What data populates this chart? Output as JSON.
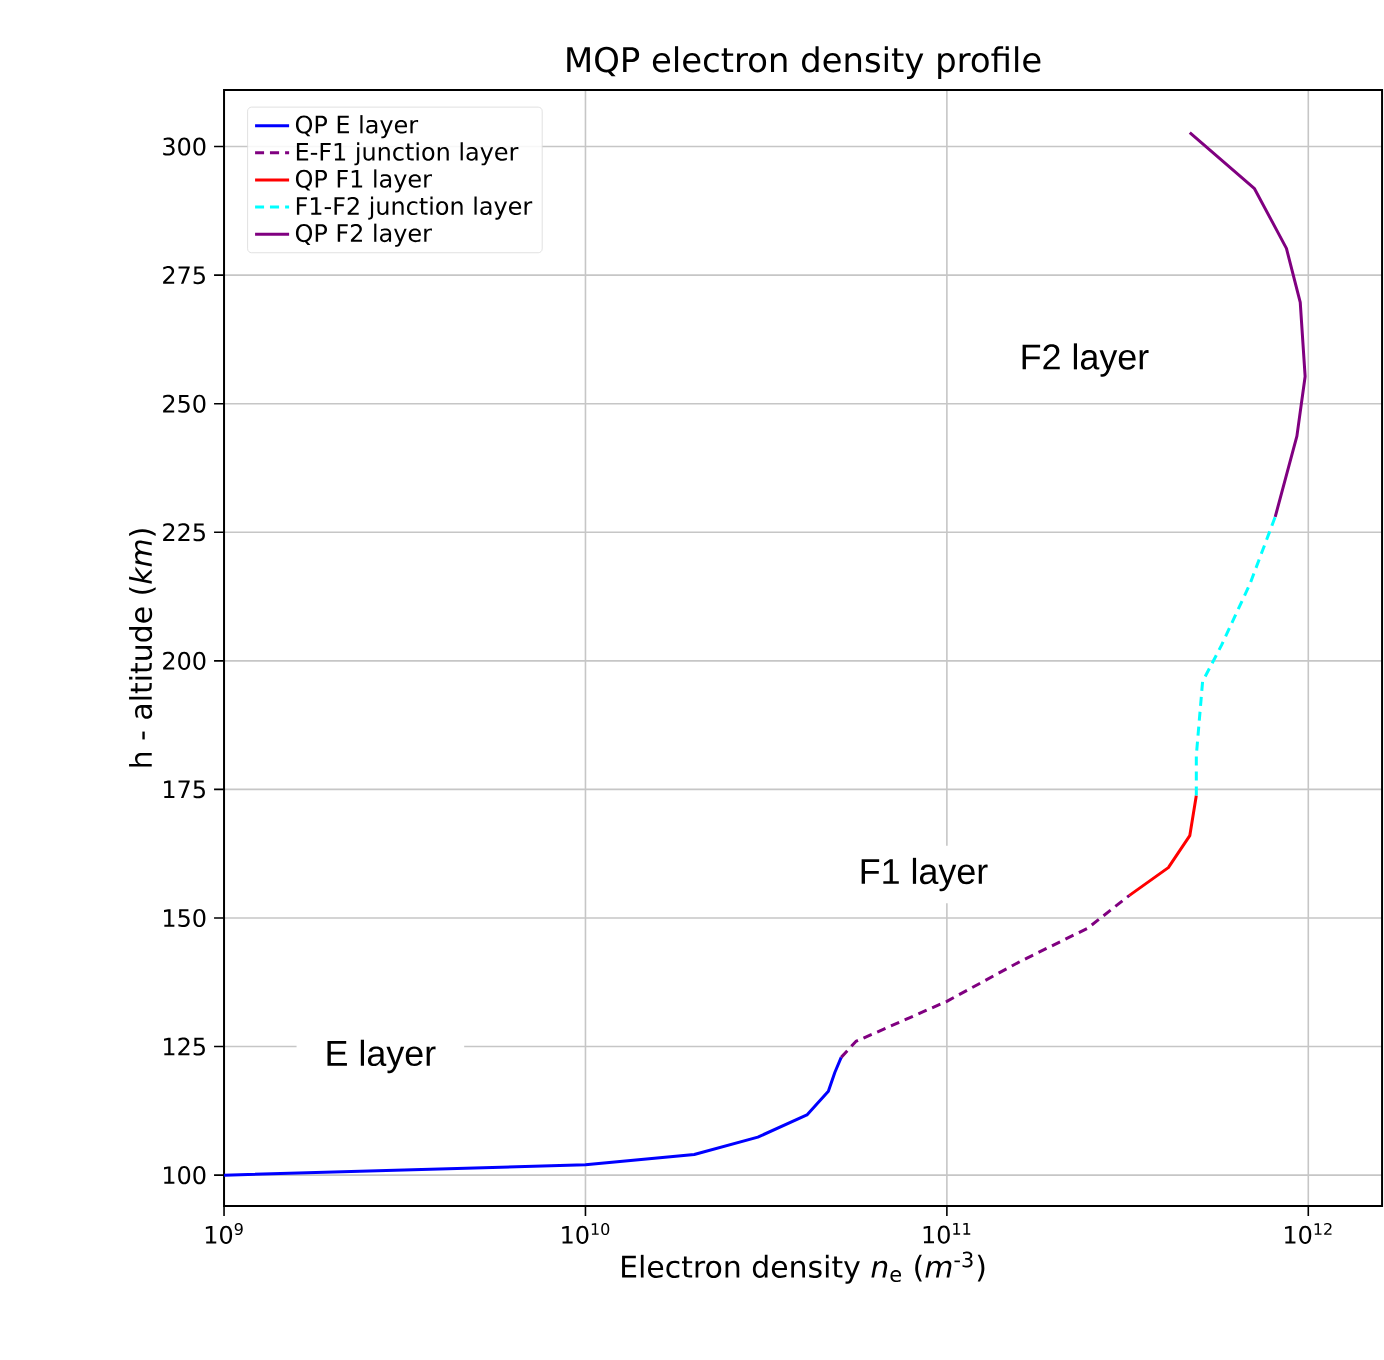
{
  "chart_data": {
    "type": "line",
    "title": "MQP electron density profile",
    "xlabel": "Electron density *n*$_{e}$ (*m*$^{-3}$)",
    "ylabel": "h - altitude (*km*)",
    "log": "x",
    "grid": true,
    "legend": "top left",
    "xlim": [
      1000000000.0,
      1600000000000.0
    ],
    "ylim": [
      94,
      311
    ],
    "xticks": [
      {
        "value": 1000000000.0,
        "label": "10$^{9}$"
      },
      {
        "value": 10000000000.0,
        "label": "10$^{10}$"
      },
      {
        "value": 100000000000.0,
        "label": "10$^{11}$"
      },
      {
        "value": 1000000000000.0,
        "label": "10$^{12}$"
      }
    ],
    "yticks": [
      100,
      125,
      150,
      175,
      200,
      225,
      250,
      275,
      300
    ],
    "series": [
      {
        "name": "QP E layer",
        "color": "#0000ff",
        "line_style": "solid",
        "x": [
          1000000000.0,
          10000000000.0,
          20000000000.0,
          30000000000.0,
          41000000000.0,
          47000000000.0,
          49000000000.0,
          51000000000.0
        ],
        "values": [
          100,
          102,
          104,
          107.4,
          111.7,
          116.3,
          120,
          122.9
        ]
      },
      {
        "name": "E-F1 junction layer",
        "color": "#800080",
        "line_style": "dashed",
        "x": [
          51000000000.0,
          56000000000.0,
          100000000000.0,
          160000000000.0,
          245000000000.0,
          320000000000.0
        ],
        "values": [
          122.9,
          126,
          133.8,
          141.6,
          148,
          154.4
        ]
      },
      {
        "name": "QP F1 layer",
        "color": "#ff0000",
        "line_style": "solid",
        "x": [
          320000000000.0,
          410000000000.0,
          470000000000.0,
          490000000000.0
        ],
        "values": [
          154.4,
          159.8,
          166,
          173.8
        ]
      },
      {
        "name": "F1-F2 junction layer",
        "color": "#00ffff",
        "line_style": "dashed",
        "x": [
          490000000000.0,
          490000000000.0,
          510000000000.0,
          575000000000.0,
          690000000000.0,
          810000000000.0
        ],
        "values": [
          173.8,
          181.6,
          196,
          203,
          215,
          228
        ]
      },
      {
        "name": "QP F2 layer",
        "color": "#800080",
        "line_style": "solid",
        "x": [
          810000000000.0,
          930000000000.0,
          980000000000.0,
          950000000000.0,
          870000000000.0,
          710000000000.0,
          470000000000.0
        ],
        "values": [
          228,
          243.7,
          255.3,
          269.7,
          280.2,
          291.8,
          302.7
        ]
      }
    ],
    "annotations": [
      "E layer",
      "F1 layer",
      "F2 layer"
    ]
  }
}
